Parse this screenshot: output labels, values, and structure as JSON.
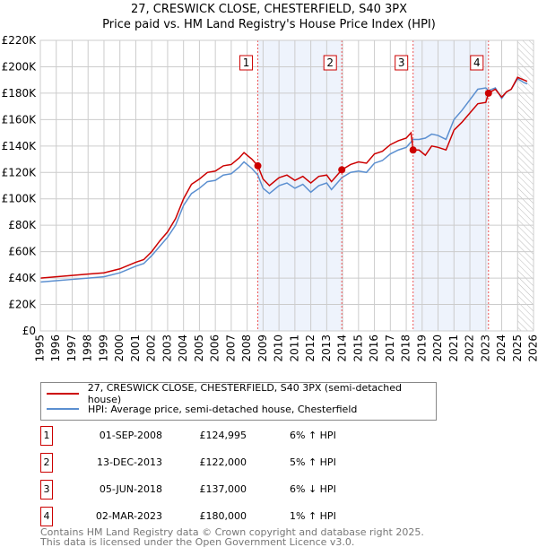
{
  "chart_data": {
    "type": "line",
    "title": "27, CRESWICK CLOSE, CHESTERFIELD, S40 3PX",
    "subtitle": "Price paid vs. HM Land Registry's House Price Index (HPI)",
    "xlim": [
      1995,
      2026
    ],
    "ylim": [
      0,
      220000
    ],
    "x_ticks": [
      "1995",
      "1996",
      "1997",
      "1998",
      "1999",
      "2000",
      "2001",
      "2002",
      "2003",
      "2004",
      "2005",
      "2006",
      "2007",
      "2008",
      "2009",
      "2010",
      "2011",
      "2012",
      "2013",
      "2014",
      "2015",
      "2016",
      "2017",
      "2018",
      "2019",
      "2020",
      "2021",
      "2022",
      "2023",
      "2024",
      "2025",
      "2026"
    ],
    "y_ticks": [
      {
        "v": 0,
        "l": "£0"
      },
      {
        "v": 20000,
        "l": "£20K"
      },
      {
        "v": 40000,
        "l": "£40K"
      },
      {
        "v": 60000,
        "l": "£60K"
      },
      {
        "v": 80000,
        "l": "£80K"
      },
      {
        "v": 100000,
        "l": "£100K"
      },
      {
        "v": 120000,
        "l": "£120K"
      },
      {
        "v": 140000,
        "l": "£140K"
      },
      {
        "v": 160000,
        "l": "£160K"
      },
      {
        "v": 180000,
        "l": "£180K"
      },
      {
        "v": 200000,
        "l": "£200K"
      },
      {
        "v": 220000,
        "l": "£220K"
      }
    ],
    "grid": true,
    "series": [
      {
        "name": "27, CRESWICK CLOSE, CHESTERFIELD, S40 3PX (semi-detached house)",
        "color": "#cc0000",
        "x": [
          1995,
          1996,
          1997,
          1998,
          1999,
          2000,
          2001,
          2001.5,
          2002,
          2002.5,
          2003,
          2003.5,
          2004,
          2004.5,
          2005,
          2005.5,
          2006,
          2006.5,
          2007,
          2007.5,
          2007.8,
          2008.3,
          2008.67,
          2009,
          2009.4,
          2010,
          2010.5,
          2011,
          2011.5,
          2012,
          2012.5,
          2013,
          2013.3,
          2013.95,
          2014.5,
          2015,
          2015.5,
          2016,
          2016.5,
          2017,
          2017.5,
          2018,
          2018.3,
          2018.43,
          2018.8,
          2019.2,
          2019.6,
          2020,
          2020.5,
          2021,
          2021.5,
          2022,
          2022.5,
          2023,
          2023.17,
          2023.6,
          2024,
          2024.3,
          2024.6,
          2025,
          2025.4,
          2025.6
        ],
        "y": [
          40000,
          41000,
          42000,
          43000,
          44000,
          47000,
          52000,
          54000,
          60000,
          68000,
          75000,
          85000,
          100000,
          111000,
          115000,
          120000,
          121000,
          125000,
          126000,
          131000,
          135000,
          130000,
          124995,
          115000,
          110000,
          116000,
          118000,
          114000,
          117000,
          112000,
          117000,
          118000,
          113000,
          122000,
          126000,
          128000,
          127000,
          134000,
          136000,
          141000,
          144000,
          146000,
          150000,
          137000,
          137000,
          133000,
          140000,
          139000,
          137000,
          152000,
          158000,
          165000,
          172000,
          173000,
          180000,
          183000,
          177000,
          181000,
          183000,
          192000,
          190000,
          189000
        ]
      },
      {
        "name": "HPI: Average price, semi-detached house, Chesterfield",
        "color": "#5b8fd0",
        "x": [
          1995,
          1996,
          1997,
          1998,
          1999,
          2000,
          2001,
          2001.5,
          2002,
          2002.5,
          2003,
          2003.5,
          2004,
          2004.5,
          2005,
          2005.5,
          2006,
          2006.5,
          2007,
          2007.5,
          2007.8,
          2008.3,
          2008.67,
          2009,
          2009.4,
          2010,
          2010.5,
          2011,
          2011.5,
          2012,
          2012.5,
          2013,
          2013.3,
          2013.95,
          2014.5,
          2015,
          2015.5,
          2016,
          2016.5,
          2017,
          2017.5,
          2018,
          2018.3,
          2018.43,
          2018.8,
          2019.2,
          2019.6,
          2020,
          2020.5,
          2021,
          2021.5,
          2022,
          2022.5,
          2023,
          2023.17,
          2023.6,
          2024,
          2024.3,
          2024.6,
          2025,
          2025.4,
          2025.6
        ],
        "y": [
          37000,
          38000,
          39000,
          40000,
          41000,
          44000,
          49000,
          51000,
          57000,
          64000,
          71000,
          80000,
          95000,
          104000,
          108000,
          113000,
          114000,
          118000,
          119000,
          124000,
          128000,
          123000,
          118000,
          108000,
          104000,
          110000,
          112000,
          108000,
          111000,
          105000,
          110000,
          112000,
          107000,
          116000,
          120000,
          121000,
          120000,
          127000,
          129000,
          134000,
          137000,
          139000,
          143000,
          145000,
          145000,
          146000,
          149000,
          148000,
          145000,
          160000,
          167000,
          175000,
          183000,
          184000,
          182000,
          184000,
          176000,
          181000,
          183000,
          191000,
          188000,
          187000
        ]
      }
    ],
    "sales": [
      {
        "n": "1",
        "x": 2008.67,
        "y": 124995
      },
      {
        "n": "2",
        "x": 2013.95,
        "y": 122000
      },
      {
        "n": "3",
        "x": 2018.43,
        "y": 137000
      },
      {
        "n": "4",
        "x": 2023.17,
        "y": 180000
      }
    ],
    "shaded": [
      [
        2008.67,
        2013.95
      ],
      [
        2018.43,
        2023.17
      ]
    ],
    "hatched_from": 2025.0
  },
  "legend": {
    "line1": "27, CRESWICK CLOSE, CHESTERFIELD, S40 3PX (semi-detached house)",
    "line2": "HPI: Average price, semi-detached house, Chesterfield"
  },
  "table": [
    {
      "n": "1",
      "date": "01-SEP-2008",
      "price": "£124,995",
      "hpi": "6% ↑ HPI"
    },
    {
      "n": "2",
      "date": "13-DEC-2013",
      "price": "£122,000",
      "hpi": "5% ↑ HPI"
    },
    {
      "n": "3",
      "date": "05-JUN-2018",
      "price": "£137,000",
      "hpi": "6% ↓ HPI"
    },
    {
      "n": "4",
      "date": "02-MAR-2023",
      "price": "£180,000",
      "hpi": "1% ↑ HPI"
    }
  ],
  "footer": {
    "line1": "Contains HM Land Registry data © Crown copyright and database right 2025.",
    "line2": "This data is licensed under the Open Government Licence v3.0."
  }
}
